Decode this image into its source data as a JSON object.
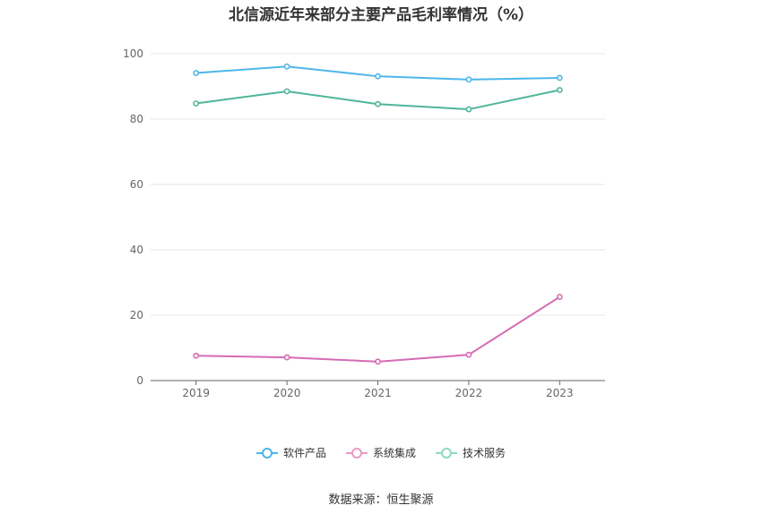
{
  "chart_data": {
    "type": "line",
    "title": "北信源近年来部分主要产品毛利率情况（%）",
    "categories": [
      "2019",
      "2020",
      "2021",
      "2022",
      "2023"
    ],
    "series": [
      {
        "name": "软件产品",
        "color": "#4db6ea",
        "values": [
          94.1,
          96.1,
          93.1,
          92.1,
          92.6
        ]
      },
      {
        "name": "系统集成",
        "color": "#d56bb4",
        "values": [
          7.6,
          7.1,
          5.8,
          7.9,
          25.6
        ]
      },
      {
        "name": "技术服务",
        "color": "#4fb59a",
        "values": [
          84.8,
          88.5,
          84.6,
          83.0,
          88.9
        ]
      }
    ],
    "ylim": [
      0,
      100
    ],
    "yticks": [
      0,
      20,
      40,
      60,
      80,
      100
    ],
    "grid": true,
    "legend_position": "bottom"
  },
  "source": "数据来源：恒生聚源",
  "legend_colors": {
    "软件产品": "#4db6ea",
    "系统集成": "#e79ac8",
    "技术服务": "#8fd8c2"
  }
}
